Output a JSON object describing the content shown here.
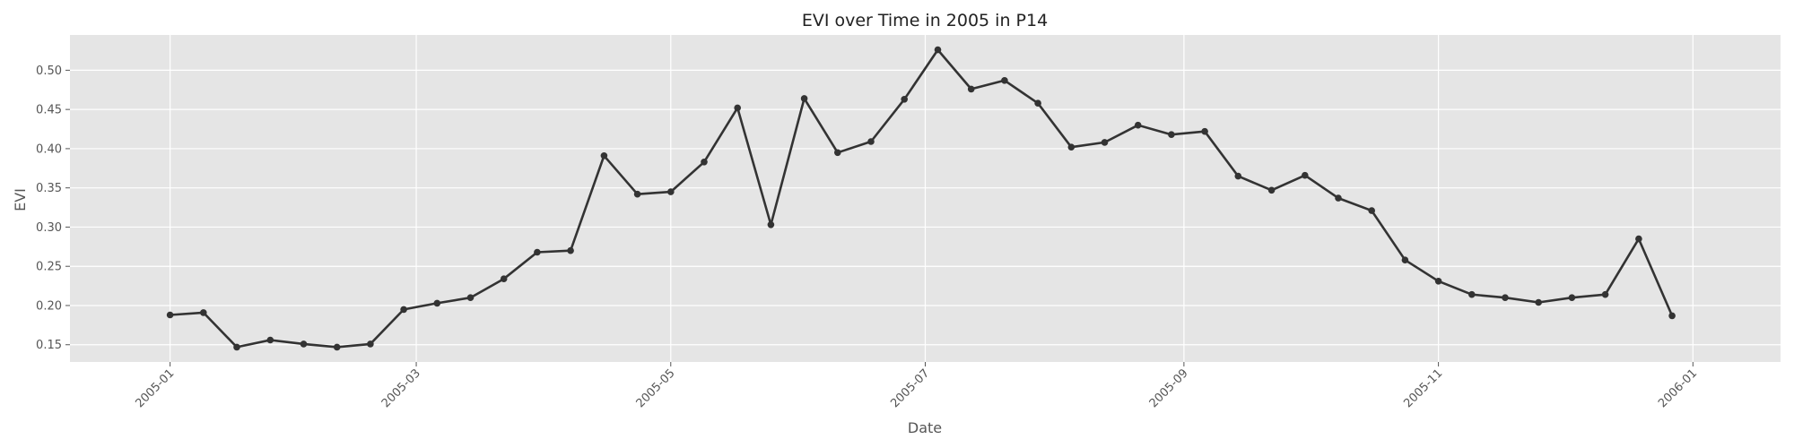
{
  "chart_data": {
    "type": "line",
    "title": "EVI over Time in 2005 in P14",
    "xlabel": "Date",
    "ylabel": "EVI",
    "x_ticks": [
      "2005-01",
      "2005-03",
      "2005-05",
      "2005-07",
      "2005-09",
      "2005-11",
      "2006-01"
    ],
    "y_ticks": [
      "0.15",
      "0.20",
      "0.25",
      "0.30",
      "0.35",
      "0.40",
      "0.45",
      "0.50"
    ],
    "xlim": [
      "2004-12-08",
      "2006-01-22"
    ],
    "ylim": [
      0.128,
      0.545
    ],
    "grid": true,
    "legend": "none",
    "colors": {
      "background": "#e5e5e5",
      "grid": "#ffffff",
      "line": "#333333",
      "marker": "#333333"
    },
    "series": [
      {
        "x": [
          "2005-01-01",
          "2005-01-09",
          "2005-01-17",
          "2005-01-25",
          "2005-02-02",
          "2005-02-10",
          "2005-02-18",
          "2005-02-26",
          "2005-03-06",
          "2005-03-14",
          "2005-03-22",
          "2005-03-30",
          "2005-04-07",
          "2005-04-15",
          "2005-04-23",
          "2005-05-01",
          "2005-05-09",
          "2005-05-17",
          "2005-05-25",
          "2005-06-02",
          "2005-06-10",
          "2005-06-18",
          "2005-06-26",
          "2005-07-04",
          "2005-07-12",
          "2005-07-20",
          "2005-07-28",
          "2005-08-05",
          "2005-08-13",
          "2005-08-21",
          "2005-08-29",
          "2005-09-06",
          "2005-09-14",
          "2005-09-22",
          "2005-09-30",
          "2005-10-08",
          "2005-10-16",
          "2005-10-24",
          "2005-11-01",
          "2005-11-09",
          "2005-11-17",
          "2005-11-25",
          "2005-12-03",
          "2005-12-11",
          "2005-12-19",
          "2005-12-27"
        ],
        "y": [
          0.188,
          0.191,
          0.147,
          0.156,
          0.151,
          0.147,
          0.151,
          0.195,
          0.203,
          0.21,
          0.234,
          0.268,
          0.27,
          0.391,
          0.342,
          0.345,
          0.383,
          0.452,
          0.303,
          0.464,
          0.395,
          0.409,
          0.463,
          0.526,
          0.476,
          0.487,
          0.458,
          0.402,
          0.408,
          0.43,
          0.418,
          0.422,
          0.365,
          0.347,
          0.366,
          0.337,
          0.321,
          0.258,
          0.231,
          0.214,
          0.21,
          0.204,
          0.21,
          0.214,
          0.285,
          0.187
        ]
      }
    ]
  }
}
